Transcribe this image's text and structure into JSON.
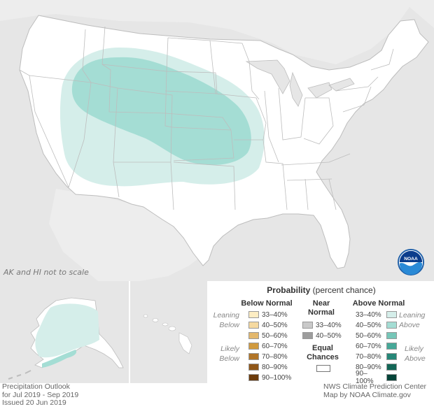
{
  "map": {
    "scale_note": "AK and HI not to scale",
    "logo_text": "NOAA"
  },
  "legend": {
    "title_bold": "Probability",
    "title_rest": " (percent chance)",
    "below_header": "Below Normal",
    "near_header_1": "Near",
    "near_header_2": "Normal",
    "above_header": "Above Normal",
    "leaning_below": [
      "Leaning",
      "Below"
    ],
    "likely_below": [
      "Likely",
      "Below"
    ],
    "leaning_above": [
      "Leaning",
      "Above"
    ],
    "likely_above": [
      "Likely",
      "Above"
    ],
    "below": [
      {
        "label": "33–40%",
        "color": "#fdedc3"
      },
      {
        "label": "40–50%",
        "color": "#f5d9a0"
      },
      {
        "label": "50–60%",
        "color": "#e3b86c"
      },
      {
        "label": "60–70%",
        "color": "#d09a3e"
      },
      {
        "label": "70–80%",
        "color": "#b17527"
      },
      {
        "label": "80–90%",
        "color": "#8f5618"
      },
      {
        "label": "90–100%",
        "color": "#6b3b0c"
      }
    ],
    "near": [
      {
        "label": "33–40%",
        "color": "#c9c9c9"
      },
      {
        "label": "40–50%",
        "color": "#9d9d9d"
      }
    ],
    "above": [
      {
        "label": "33–40%",
        "color": "#d5eeea"
      },
      {
        "label": "40–50%",
        "color": "#a4ddd4"
      },
      {
        "label": "50–60%",
        "color": "#76c6b8"
      },
      {
        "label": "60–70%",
        "color": "#46a898"
      },
      {
        "label": "70–80%",
        "color": "#268778"
      },
      {
        "label": "80–90%",
        "color": "#136656"
      },
      {
        "label": "90–100%",
        "color": "#054439"
      }
    ],
    "equal_chances": [
      "Equal",
      "Chances"
    ]
  },
  "footer": {
    "left_1": "Precipitation Outlook",
    "left_2": "for Jul 2019 - Sep 2019",
    "left_3": "Issued 20 Jun 2019",
    "right_1": "NWS Climate Prediction Center",
    "right_2": "Map by NOAA Climate.gov"
  },
  "colors": {
    "ocean": "#e6e6e6",
    "land": "#ffffff",
    "border": "#bdbdbd",
    "leaning_above": "#d5eeea",
    "above_40_50": "#a4ddd4",
    "noaa_blue": "#1e5fa8"
  }
}
